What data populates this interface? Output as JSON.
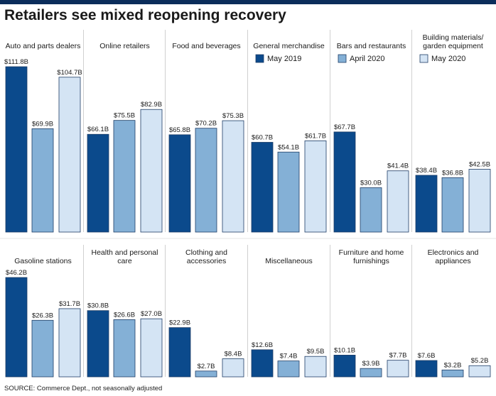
{
  "title": "Retailers see mixed reopening recovery",
  "source": "SOURCE: Commerce Dept., not seasonally adjusted",
  "colors": {
    "may2019": "#0b4a8c",
    "april2020": "#84b0d6",
    "may2020": "#d4e4f4",
    "topbar": "#0b2d5b",
    "divider": "#d0d0d0"
  },
  "chart_data": {
    "type": "bar",
    "title": "Retailers see mixed reopening recovery",
    "series_names": [
      "May 2019",
      "April 2020",
      "May 2020"
    ],
    "legend_placement": "top-right",
    "panels": [
      {
        "category": [
          "Auto and parts dealers"
        ],
        "values": [
          111.8,
          69.9,
          104.7
        ],
        "labels": [
          "$111.8B",
          "$69.9B",
          "$104.7B"
        ]
      },
      {
        "category": [
          "Online retailers"
        ],
        "values": [
          66.1,
          75.5,
          82.9
        ],
        "labels": [
          "$66.1B",
          "$75.5B",
          "$82.9B"
        ]
      },
      {
        "category": [
          "Food and beverages"
        ],
        "values": [
          65.8,
          70.2,
          75.3
        ],
        "labels": [
          "$65.8B",
          "$70.2B",
          "$75.3B"
        ]
      },
      {
        "category": [
          "General merchandise"
        ],
        "values": [
          60.7,
          54.1,
          61.7
        ],
        "labels": [
          "$60.7B",
          "$54.1B",
          "$61.7B"
        ]
      },
      {
        "category": [
          "Bars and restaurants"
        ],
        "values": [
          67.7,
          30.0,
          41.4
        ],
        "labels": [
          "$67.7B",
          "$30.0B",
          "$41.4B"
        ]
      },
      {
        "category": [
          "Building materials/",
          "garden equipment"
        ],
        "values": [
          38.4,
          36.8,
          42.5
        ],
        "labels": [
          "$38.4B",
          "$36.8B",
          "$42.5B"
        ]
      },
      {
        "category": [
          "Gasoline stations"
        ],
        "values": [
          46.2,
          26.3,
          31.7
        ],
        "labels": [
          "$46.2B",
          "$26.3B",
          "$31.7B"
        ]
      },
      {
        "category": [
          "Health and personal",
          "care"
        ],
        "values": [
          30.8,
          26.6,
          27.0
        ],
        "labels": [
          "$30.8B",
          "$26.6B",
          "$27.0B"
        ]
      },
      {
        "category": [
          "Clothing and",
          "accessories"
        ],
        "values": [
          22.9,
          2.7,
          8.4
        ],
        "labels": [
          "$22.9B",
          "$2.7B",
          "$8.4B"
        ]
      },
      {
        "category": [
          "Miscellaneous"
        ],
        "values": [
          12.6,
          7.4,
          9.5
        ],
        "labels": [
          "$12.6B",
          "$7.4B",
          "$9.5B"
        ]
      },
      {
        "category": [
          "Furniture and home",
          "furnishings"
        ],
        "values": [
          10.1,
          3.9,
          7.7
        ],
        "labels": [
          "$10.1B",
          "$3.9B",
          "$7.7B"
        ]
      },
      {
        "category": [
          "Electronics and",
          "appliances"
        ],
        "values": [
          7.6,
          3.2,
          5.2
        ],
        "labels": [
          "$7.6B",
          "$3.2B",
          "$5.2B"
        ]
      }
    ]
  }
}
